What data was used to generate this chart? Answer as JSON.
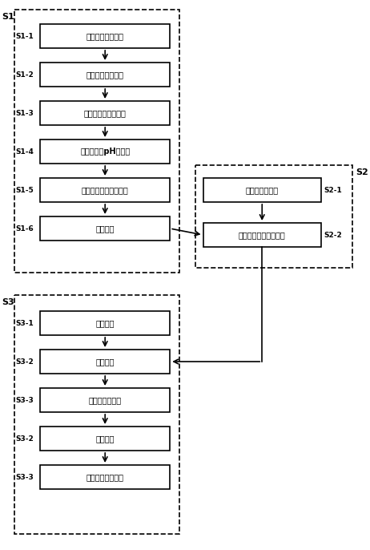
{
  "bg_color": "#ffffff",
  "box_color": "#ffffff",
  "box_edge_color": "#000000",
  "dashed_box_color": "#000000",
  "arrow_color": "#000000",
  "text_color": "#000000",
  "s1_label": "S1",
  "s2_label": "S2",
  "s3_label": "S3",
  "s1_steps": [
    {
      "id": "S1-1",
      "text": "配制胶原蛋白溶液"
    },
    {
      "id": "S1-2",
      "text": "加入合成离子溶液"
    },
    {
      "id": "S1-3",
      "text": "加入含调控离子溶液"
    },
    {
      "id": "S1-4",
      "text": "调节混合液pH至中性"
    },
    {
      "id": "S1-5",
      "text": "离心分离，选择性清洗"
    },
    {
      "id": "S1-6",
      "text": "冷冻干燥"
    }
  ],
  "s2_steps": [
    {
      "id": "S2-1",
      "text": "配制磷灰石溶液"
    },
    {
      "id": "S2-2",
      "text": "加入矿化胶原复合材料"
    }
  ],
  "s3_steps": [
    {
      "id": "S3-1",
      "text": "准备模具"
    },
    {
      "id": "S3-2",
      "text": "灌注下模"
    },
    {
      "id": "S3-3",
      "text": "放置上层并锁住"
    },
    {
      "id": "S3-2b",
      "text": "冷冻干燥"
    },
    {
      "id": "S3-3b",
      "text": "脱模、修整后处理"
    }
  ]
}
